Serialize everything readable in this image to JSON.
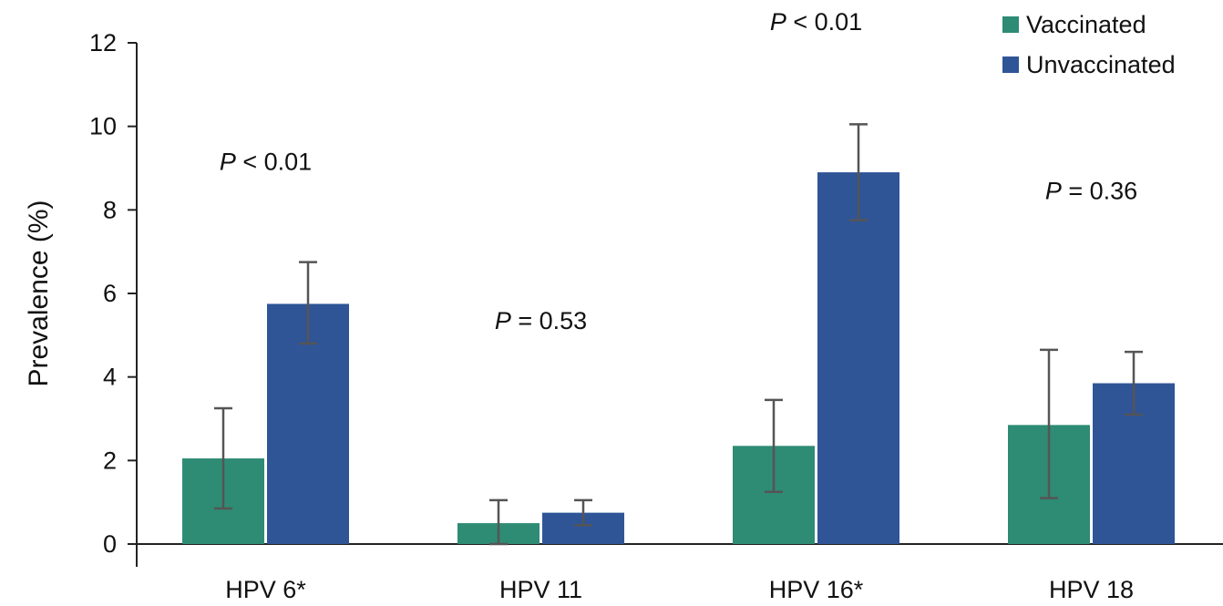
{
  "chart_data": {
    "type": "bar",
    "ylabel": "Prevalence (%)",
    "ylim": [
      0,
      12
    ],
    "yticks": [
      0,
      2,
      4,
      6,
      8,
      10,
      12
    ],
    "grid": false,
    "legend_position": "top-right",
    "categories": [
      "HPV 6*",
      "HPV 11",
      "HPV 16*",
      "HPV 18"
    ],
    "series": [
      {
        "name": "Vaccinated",
        "color": "#2e8b74",
        "values": [
          2.05,
          0.5,
          2.35,
          2.85
        ],
        "error_low": [
          0.85,
          0.0,
          1.25,
          1.1
        ],
        "error_high": [
          3.25,
          1.05,
          3.45,
          4.65
        ]
      },
      {
        "name": "Unvaccinated",
        "color": "#2f5597",
        "values": [
          5.75,
          0.75,
          8.9,
          3.85
        ],
        "error_low": [
          4.8,
          0.45,
          7.75,
          3.1
        ],
        "error_high": [
          6.75,
          1.05,
          10.05,
          4.6
        ]
      }
    ],
    "annotations": [
      {
        "category": "HPV 6*",
        "p_label": "P",
        "rest": " < 0.01",
        "y": 9.15
      },
      {
        "category": "HPV 11",
        "p_label": "P",
        "rest": " = 0.53",
        "y": 5.35
      },
      {
        "category": "HPV 16*",
        "p_label": "P",
        "rest": " < 0.01",
        "y": 12.5
      },
      {
        "category": "HPV 18",
        "p_label": "P",
        "rest": " = 0.36",
        "y": 8.45
      }
    ]
  }
}
